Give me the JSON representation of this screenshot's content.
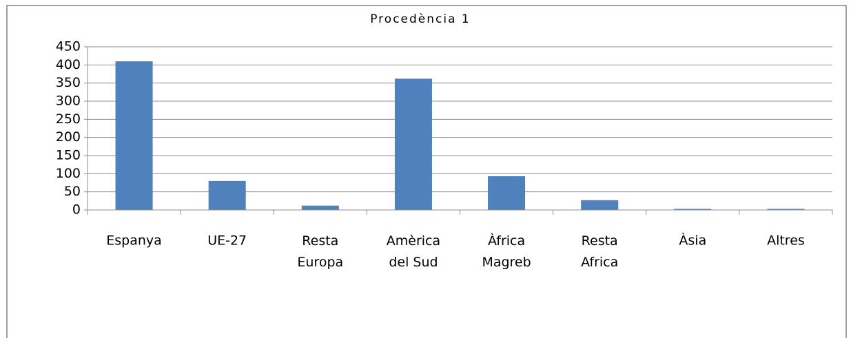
{
  "chart_data": {
    "type": "bar",
    "title": "Procedència 1",
    "categories": [
      "Espanya",
      "UE-27",
      "Resta Europa",
      "Amèrica del Sud",
      "Àfrica Magreb",
      "Resta Africa",
      "Àsia",
      "Altres"
    ],
    "values": [
      410,
      80,
      12,
      362,
      93,
      27,
      3,
      3
    ],
    "color": "#4f81bd",
    "ylim": [
      0,
      450
    ],
    "yticks": [
      0,
      50,
      100,
      150,
      200,
      250,
      300,
      350,
      400,
      450
    ],
    "grid": true
  }
}
